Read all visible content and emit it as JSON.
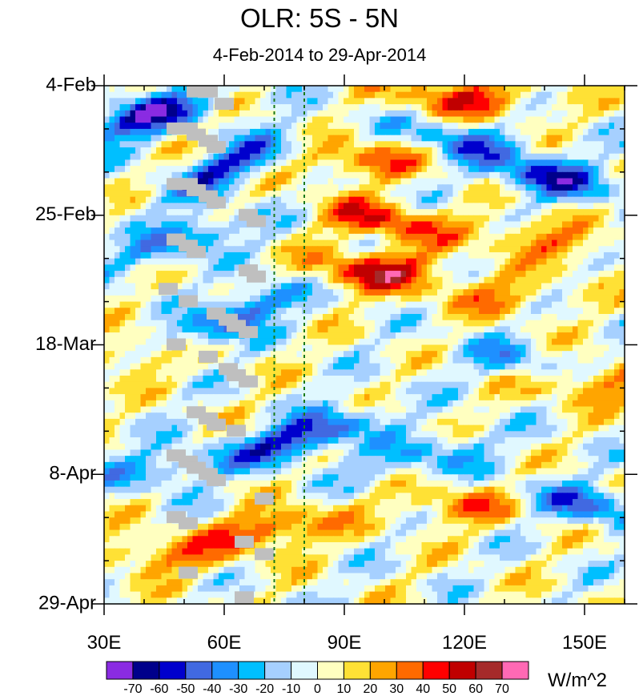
{
  "chart_data": {
    "type": "heatmap",
    "title": "OLR: 5S - 5N",
    "subtitle": "4-Feb-2014 to 29-Apr-2014",
    "x_axis": {
      "range": [
        30,
        160
      ],
      "tick_values": [
        30,
        60,
        90,
        120,
        150
      ],
      "tick_labels": [
        "30E",
        "60E",
        "90E",
        "120E",
        "150E"
      ]
    },
    "y_axis": {
      "range_days": [
        0,
        84
      ],
      "tick_days": [
        0,
        21,
        42,
        63,
        84
      ],
      "tick_labels": [
        "4-Feb",
        "25-Feb",
        "18-Mar",
        "8-Apr",
        "29-Apr"
      ]
    },
    "reference_lines_lon": [
      72.5,
      80
    ],
    "colorbar": {
      "units": "W/m^2",
      "levels": [
        -70,
        -60,
        -50,
        -40,
        -30,
        -20,
        -10,
        0,
        10,
        20,
        30,
        40,
        50,
        60,
        70
      ],
      "colors": [
        "#8a2be2",
        "#00008b",
        "#0000cd",
        "#4169e1",
        "#1e90ff",
        "#00bfff",
        "#a6d0ff",
        "#e0f8ff",
        "#ffffc0",
        "#ffe135",
        "#ffa500",
        "#ff6a00",
        "#ff0000",
        "#c00000",
        "#a52a2a",
        "#ff69b4"
      ]
    },
    "grid": "off",
    "missing_color": "#bfbfbf",
    "features": [
      {
        "lon": 62,
        "day": 13,
        "amp": -50,
        "slope": -0.25
      },
      {
        "lon": 40,
        "day": 5,
        "amp": -60,
        "slope": -0.15
      },
      {
        "lon": 142,
        "day": 15,
        "amp": -50,
        "slope": 0.1
      },
      {
        "lon": 120,
        "day": 9,
        "amp": -35,
        "slope": 0.1
      },
      {
        "lon": 64,
        "day": 37,
        "amp": -55,
        "slope": -0.3
      },
      {
        "lon": 80,
        "day": 57,
        "amp": -60,
        "slope": -0.18
      },
      {
        "lon": 50,
        "day": 25,
        "amp": -40,
        "slope": -0.2
      },
      {
        "lon": 135,
        "day": 45,
        "amp": -30,
        "slope": 0.12
      },
      {
        "lon": 150,
        "day": 68,
        "amp": -40,
        "slope": 0.1
      },
      {
        "lon": 110,
        "day": 60,
        "amp": -30,
        "slope": -0.1
      },
      {
        "lon": 44,
        "day": 62,
        "amp": -30,
        "slope": -0.1
      },
      {
        "lon": 97,
        "day": 30,
        "amp": 55,
        "slope": 0.0
      },
      {
        "lon": 100,
        "day": 22,
        "amp": 45,
        "slope": 0.1
      },
      {
        "lon": 120,
        "day": 2,
        "amp": 45,
        "slope": 0.05
      },
      {
        "lon": 72,
        "day": 72,
        "amp": 45,
        "slope": -0.1
      },
      {
        "lon": 44,
        "day": 76,
        "amp": 30,
        "slope": 0.05
      },
      {
        "lon": 150,
        "day": 48,
        "amp": 40,
        "slope": 0.05
      },
      {
        "lon": 140,
        "day": 25,
        "amp": 30,
        "slope": 0.1
      },
      {
        "lon": 120,
        "day": 68,
        "amp": 30,
        "slope": 0.0
      },
      {
        "lon": 35,
        "day": 44,
        "amp": 25,
        "slope": 0.0
      },
      {
        "lon": 95,
        "day": 12,
        "amp": 35,
        "slope": 0.0
      },
      {
        "lon": 128,
        "day": 34,
        "amp": 25,
        "slope": 0.0
      }
    ],
    "missing_cells": [
      {
        "lon": 53,
        "day": 1
      },
      {
        "lon": 56,
        "day": 1
      },
      {
        "lon": 60,
        "day": 3
      },
      {
        "lon": 48,
        "day": 7
      },
      {
        "lon": 51,
        "day": 7
      },
      {
        "lon": 53,
        "day": 8
      },
      {
        "lon": 56,
        "day": 9
      },
      {
        "lon": 58,
        "day": 10
      },
      {
        "lon": 48,
        "day": 16
      },
      {
        "lon": 51,
        "day": 16
      },
      {
        "lon": 53,
        "day": 17
      },
      {
        "lon": 56,
        "day": 18
      },
      {
        "lon": 58,
        "day": 19
      },
      {
        "lon": 66,
        "day": 21
      },
      {
        "lon": 68,
        "day": 22
      },
      {
        "lon": 48,
        "day": 25
      },
      {
        "lon": 51,
        "day": 26
      },
      {
        "lon": 53,
        "day": 27
      },
      {
        "lon": 66,
        "day": 30
      },
      {
        "lon": 68,
        "day": 31
      },
      {
        "lon": 46,
        "day": 33
      },
      {
        "lon": 51,
        "day": 35
      },
      {
        "lon": 58,
        "day": 37
      },
      {
        "lon": 61,
        "day": 38
      },
      {
        "lon": 63,
        "day": 39
      },
      {
        "lon": 66,
        "day": 40
      },
      {
        "lon": 48,
        "day": 42
      },
      {
        "lon": 56,
        "day": 44
      },
      {
        "lon": 61,
        "day": 46
      },
      {
        "lon": 63,
        "day": 47
      },
      {
        "lon": 66,
        "day": 48
      },
      {
        "lon": 53,
        "day": 53
      },
      {
        "lon": 56,
        "day": 54
      },
      {
        "lon": 58,
        "day": 55
      },
      {
        "lon": 63,
        "day": 56
      },
      {
        "lon": 48,
        "day": 60
      },
      {
        "lon": 51,
        "day": 61
      },
      {
        "lon": 53,
        "day": 62
      },
      {
        "lon": 56,
        "day": 63
      },
      {
        "lon": 58,
        "day": 64
      },
      {
        "lon": 70,
        "day": 67
      },
      {
        "lon": 48,
        "day": 70
      },
      {
        "lon": 51,
        "day": 71
      },
      {
        "lon": 65,
        "day": 74
      },
      {
        "lon": 70,
        "day": 76
      },
      {
        "lon": 51,
        "day": 79
      },
      {
        "lon": 65,
        "day": 83
      }
    ]
  }
}
